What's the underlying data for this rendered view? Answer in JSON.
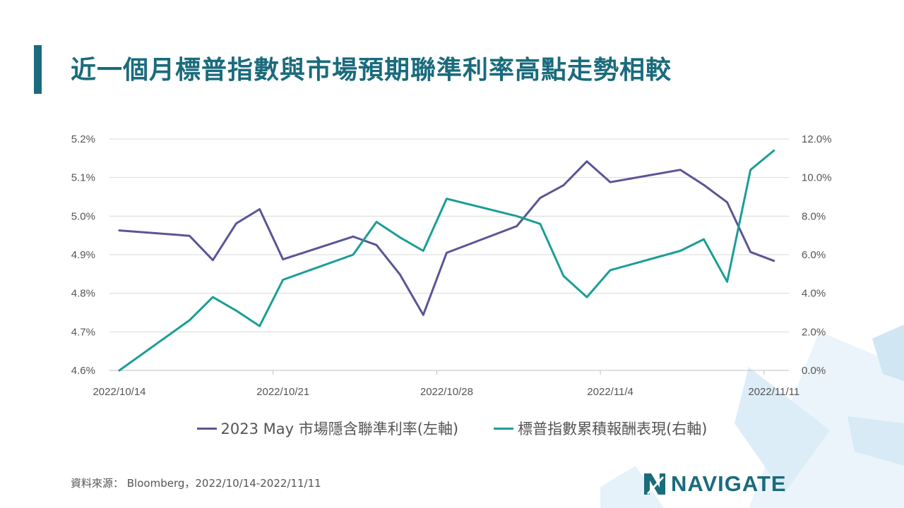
{
  "title": "近一個月標普指數與市場預期聯準利率高點走勢相較",
  "source": "資料來源： Bloomberg，2022/10/14-2022/11/11",
  "logo_text": "NAVIGATE",
  "chart_data": {
    "type": "line",
    "x_ticks": [
      "2022/10/14",
      "2022/10/21",
      "2022/10/28",
      "2022/11/4",
      "2022/11/11"
    ],
    "y_left": {
      "ticks": [
        "4.6%",
        "4.7%",
        "4.8%",
        "4.9%",
        "5.0%",
        "5.1%",
        "5.2%"
      ],
      "range": [
        4.6,
        5.2
      ]
    },
    "y_right": {
      "ticks": [
        "0.0%",
        "2.0%",
        "4.0%",
        "6.0%",
        "8.0%",
        "10.0%",
        "12.0%"
      ],
      "range": [
        0,
        12
      ]
    },
    "grid": true,
    "legend_position": "bottom",
    "series": [
      {
        "name": "2023 May 市場隱含聯準利率(左軸)",
        "axis": "left",
        "color": "#5a5596",
        "points": [
          [
            "2022-10-14",
            4.963
          ],
          [
            "2022-10-17",
            4.949
          ],
          [
            "2022-10-18",
            4.886
          ],
          [
            "2022-10-19",
            4.981
          ],
          [
            "2022-10-20",
            5.018
          ],
          [
            "2022-10-21",
            4.888
          ],
          [
            "2022-10-24",
            4.947
          ],
          [
            "2022-10-25",
            4.925
          ],
          [
            "2022-10-26",
            4.849
          ],
          [
            "2022-10-27",
            4.744
          ],
          [
            "2022-10-28",
            4.905
          ],
          [
            "2022-10-31",
            4.974
          ],
          [
            "2022-11-01",
            5.047
          ],
          [
            "2022-11-02",
            5.08
          ],
          [
            "2022-11-03",
            5.142
          ],
          [
            "2022-11-04",
            5.088
          ],
          [
            "2022-11-07",
            5.12
          ],
          [
            "2022-11-08",
            5.081
          ],
          [
            "2022-11-09",
            5.036
          ],
          [
            "2022-11-10",
            4.907
          ],
          [
            "2022-11-11",
            4.884
          ]
        ]
      },
      {
        "name": "標普指數累積報酬表現(右軸)",
        "axis": "right",
        "color": "#1a9e96",
        "points": [
          [
            "2022-10-14",
            0.0
          ],
          [
            "2022-10-17",
            2.6
          ],
          [
            "2022-10-18",
            3.8
          ],
          [
            "2022-10-19",
            3.1
          ],
          [
            "2022-10-20",
            2.3
          ],
          [
            "2022-10-21",
            4.7
          ],
          [
            "2022-10-24",
            6.0
          ],
          [
            "2022-10-25",
            7.7
          ],
          [
            "2022-10-26",
            6.9
          ],
          [
            "2022-10-27",
            6.2
          ],
          [
            "2022-10-28",
            8.9
          ],
          [
            "2022-10-31",
            8.0
          ],
          [
            "2022-11-01",
            7.6
          ],
          [
            "2022-11-02",
            4.9
          ],
          [
            "2022-11-03",
            3.8
          ],
          [
            "2022-11-04",
            5.2
          ],
          [
            "2022-11-07",
            6.2
          ],
          [
            "2022-11-08",
            6.8
          ],
          [
            "2022-11-09",
            4.6
          ],
          [
            "2022-11-10",
            10.4
          ],
          [
            "2022-11-11",
            11.4
          ]
        ]
      }
    ]
  }
}
